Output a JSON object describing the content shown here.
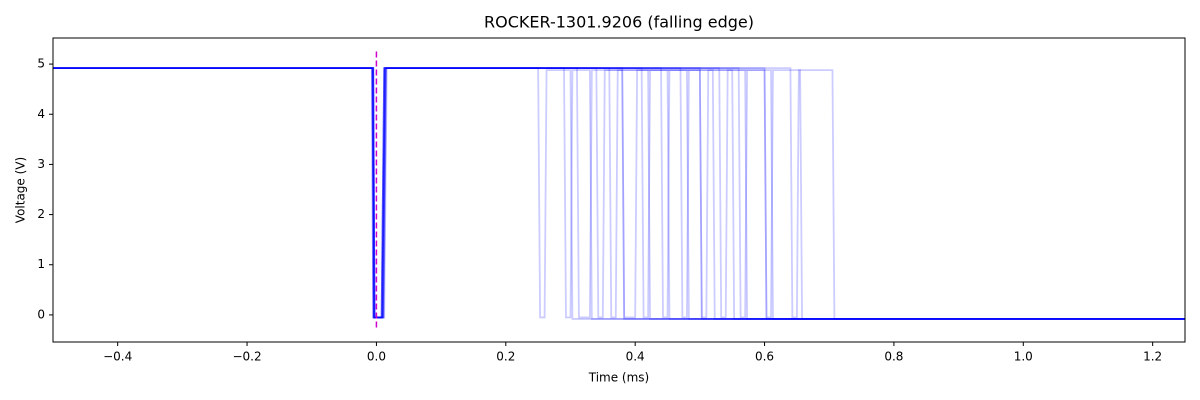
{
  "chart_data": {
    "type": "line",
    "title": "ROCKER-1301.9206 (falling edge)",
    "x_label": "Time (ms)",
    "y_label": "Voltage (V)",
    "xlim": [
      -0.5,
      1.25
    ],
    "ylim": [
      -0.54,
      5.52
    ],
    "xticks": [
      {
        "value": -0.4,
        "label": "−0.4"
      },
      {
        "value": -0.2,
        "label": "−0.2"
      },
      {
        "value": 0,
        "label": "0.0"
      },
      {
        "value": 0.2,
        "label": "0.2"
      },
      {
        "value": 0.4,
        "label": "0.4"
      },
      {
        "value": 0.6,
        "label": "0.6"
      },
      {
        "value": 0.8,
        "label": "0.8"
      },
      {
        "value": 1.0,
        "label": "1.0"
      },
      {
        "value": 1.2,
        "label": "1.2"
      }
    ],
    "yticks": [
      0,
      1,
      2,
      3,
      4,
      5
    ],
    "alpha": 0.2,
    "vline": {
      "x": 0,
      "ymin": -0.25,
      "ymax": 5.25,
      "color": "#cc00cc"
    },
    "series": [
      {
        "color": "#0000ff",
        "x": [
          -0.5,
          -0.005,
          -0.003,
          0.008,
          0.012,
          0.25,
          0.253,
          0.26,
          0.263,
          0.3,
          0.303,
          1.25
        ],
        "values": [
          4.92,
          4.92,
          -0.05,
          -0.05,
          4.92,
          4.92,
          -0.05,
          -0.05,
          4.88,
          4.88,
          -0.08,
          -0.08
        ]
      },
      {
        "color": "#0000ff",
        "x": [
          -0.5,
          -0.006,
          -0.004,
          0.009,
          0.013,
          0.29,
          0.293,
          0.3,
          0.303,
          0.33,
          0.333,
          1.25
        ],
        "values": [
          4.92,
          4.92,
          -0.05,
          -0.05,
          4.92,
          4.92,
          -0.05,
          -0.05,
          4.88,
          4.88,
          -0.08,
          -0.08
        ]
      },
      {
        "color": "#0000ff",
        "x": [
          -0.5,
          -0.005,
          -0.003,
          0.01,
          0.014,
          0.31,
          0.313,
          0.33,
          0.333,
          0.38,
          0.383,
          1.25
        ],
        "values": [
          4.92,
          4.92,
          -0.05,
          -0.05,
          4.92,
          4.92,
          -0.05,
          -0.05,
          4.88,
          4.88,
          -0.08,
          -0.08
        ]
      },
      {
        "color": "#0000ff",
        "x": [
          -0.5,
          -0.007,
          -0.005,
          0.008,
          0.012,
          0.34,
          0.343,
          0.35,
          0.353,
          0.42,
          0.423,
          1.25
        ],
        "values": [
          4.92,
          4.92,
          -0.05,
          -0.05,
          4.92,
          4.92,
          -0.05,
          -0.05,
          4.88,
          4.88,
          -0.08,
          -0.08
        ]
      },
      {
        "color": "#0000ff",
        "x": [
          -0.5,
          -0.005,
          -0.003,
          0.011,
          0.015,
          0.36,
          0.363,
          0.37,
          0.373,
          0.45,
          0.453,
          1.25
        ],
        "values": [
          4.92,
          4.92,
          -0.05,
          -0.05,
          4.92,
          4.92,
          -0.05,
          -0.05,
          4.88,
          4.88,
          -0.08,
          -0.08
        ]
      },
      {
        "color": "#0000ff",
        "x": [
          -0.5,
          -0.006,
          -0.004,
          0.009,
          0.013,
          0.38,
          0.383,
          0.4,
          0.403,
          0.48,
          0.483,
          1.25
        ],
        "values": [
          4.92,
          4.92,
          -0.05,
          -0.05,
          4.92,
          4.92,
          -0.05,
          -0.05,
          4.88,
          4.88,
          -0.08,
          -0.08
        ]
      },
      {
        "color": "#0000ff",
        "x": [
          -0.5,
          -0.005,
          -0.003,
          0.012,
          0.016,
          0.41,
          0.413,
          0.42,
          0.423,
          0.5,
          0.503,
          1.25
        ],
        "values": [
          4.92,
          4.92,
          -0.05,
          -0.05,
          4.92,
          4.92,
          -0.05,
          -0.05,
          4.88,
          4.88,
          -0.08,
          -0.08
        ]
      },
      {
        "color": "#0000ff",
        "x": [
          -0.5,
          -0.006,
          -0.004,
          0.008,
          0.012,
          0.44,
          0.443,
          0.45,
          0.453,
          0.52,
          0.523,
          1.25
        ],
        "values": [
          4.92,
          4.92,
          -0.05,
          -0.05,
          4.92,
          4.92,
          -0.05,
          -0.05,
          4.88,
          4.88,
          -0.08,
          -0.08
        ]
      },
      {
        "color": "#0000ff",
        "x": [
          -0.5,
          -0.005,
          -0.003,
          0.01,
          0.014,
          0.47,
          0.473,
          0.48,
          0.483,
          0.55,
          0.553,
          1.25
        ],
        "values": [
          4.92,
          4.92,
          -0.05,
          -0.05,
          4.92,
          4.92,
          -0.05,
          -0.05,
          4.88,
          4.88,
          -0.08,
          -0.08
        ]
      },
      {
        "color": "#0000ff",
        "x": [
          -0.5,
          -0.007,
          -0.005,
          0.009,
          0.013,
          0.5,
          0.503,
          0.51,
          0.513,
          0.57,
          0.573,
          1.25
        ],
        "values": [
          4.92,
          4.92,
          -0.05,
          -0.05,
          4.92,
          4.92,
          -0.05,
          -0.05,
          4.88,
          4.88,
          -0.08,
          -0.08
        ]
      },
      {
        "color": "#0000ff",
        "x": [
          -0.5,
          -0.005,
          -0.003,
          0.011,
          0.015,
          0.53,
          0.533,
          0.54,
          0.543,
          0.6,
          0.603,
          1.25
        ],
        "values": [
          4.92,
          4.92,
          -0.05,
          -0.05,
          4.92,
          4.92,
          -0.05,
          -0.05,
          4.88,
          4.88,
          -0.08,
          -0.08
        ]
      },
      {
        "color": "#0000ff",
        "x": [
          -0.5,
          -0.006,
          -0.004,
          0.008,
          0.012,
          0.56,
          0.563,
          0.57,
          0.573,
          0.61,
          0.613,
          1.25
        ],
        "values": [
          4.92,
          4.92,
          -0.05,
          -0.05,
          4.92,
          4.92,
          -0.05,
          -0.05,
          4.88,
          4.88,
          -0.08,
          -0.08
        ]
      },
      {
        "color": "#0000ff",
        "x": [
          -0.5,
          -0.005,
          -0.003,
          0.01,
          0.014,
          0.6,
          0.603,
          0.61,
          0.613,
          0.655,
          0.658,
          1.25
        ],
        "values": [
          4.92,
          4.92,
          -0.05,
          -0.05,
          4.92,
          4.92,
          -0.05,
          -0.05,
          4.88,
          4.88,
          -0.08,
          -0.08
        ]
      },
      {
        "color": "#0000ff",
        "x": [
          -0.5,
          -0.006,
          -0.004,
          0.009,
          0.013,
          0.64,
          0.643,
          0.65,
          0.653,
          0.705,
          0.708,
          1.25
        ],
        "values": [
          4.92,
          4.92,
          -0.05,
          -0.05,
          4.92,
          4.92,
          -0.05,
          -0.05,
          4.88,
          4.88,
          -0.08,
          -0.08
        ]
      }
    ]
  }
}
